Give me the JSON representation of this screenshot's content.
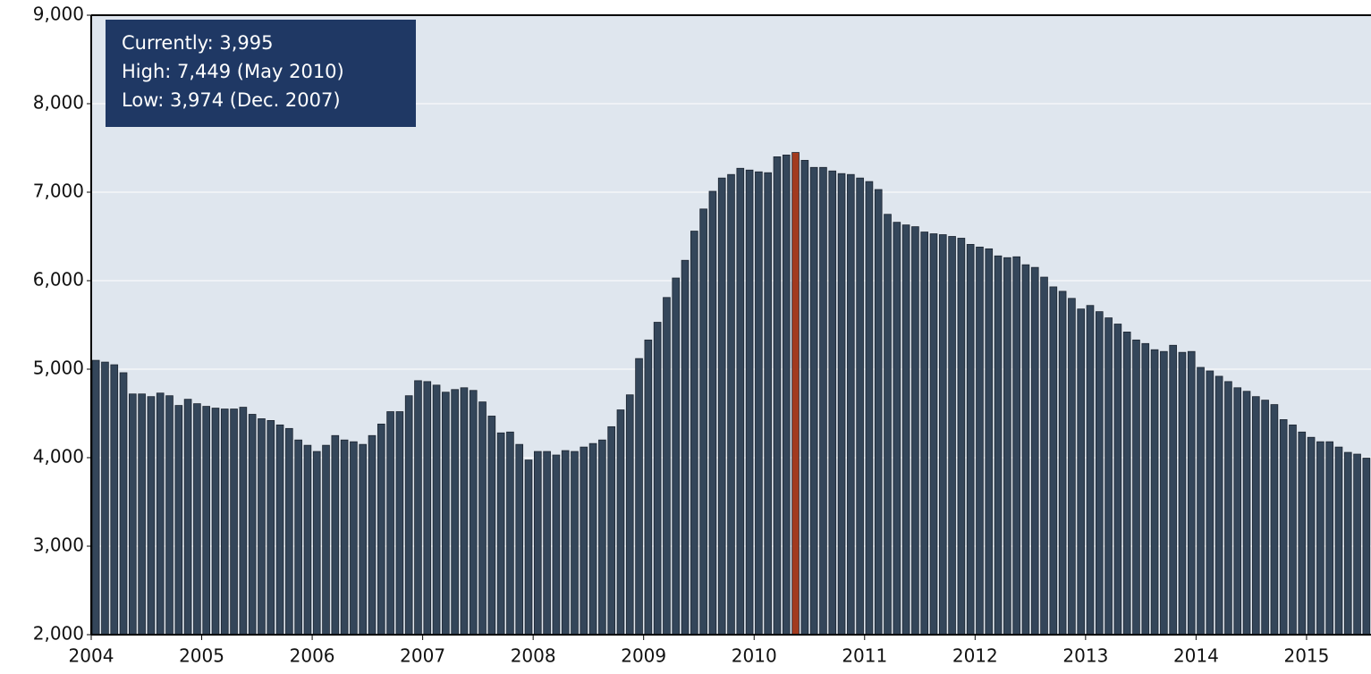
{
  "chart_data": {
    "type": "bar",
    "annotations": [
      "Currently: 3,995",
      "High: 7,449 (May 2010)",
      "Low: 3,974 (Dec. 2007)"
    ],
    "categories": [
      "2004",
      null,
      null,
      null,
      null,
      null,
      null,
      null,
      null,
      null,
      null,
      null,
      "2005",
      null,
      null,
      null,
      null,
      null,
      null,
      null,
      null,
      null,
      null,
      null,
      "2006",
      null,
      null,
      null,
      null,
      null,
      null,
      null,
      null,
      null,
      null,
      null,
      "2007",
      null,
      null,
      null,
      null,
      null,
      null,
      null,
      null,
      null,
      null,
      null,
      "2008",
      null,
      null,
      null,
      null,
      null,
      null,
      null,
      null,
      null,
      null,
      null,
      "2009",
      null,
      null,
      null,
      null,
      null,
      null,
      null,
      null,
      null,
      null,
      null,
      "2010",
      null,
      null,
      null,
      null,
      null,
      null,
      null,
      null,
      null,
      null,
      null,
      "2011",
      null,
      null,
      null,
      null,
      null,
      null,
      null,
      null,
      null,
      null,
      null,
      "2012",
      null,
      null,
      null,
      null,
      null,
      null,
      null,
      null,
      null,
      null,
      null,
      "2013",
      null,
      null,
      null,
      null,
      null,
      null,
      null,
      null,
      null,
      null,
      null,
      "2014",
      null,
      null,
      null,
      null,
      null,
      null,
      null,
      null,
      null,
      null,
      null,
      "2015",
      null,
      null,
      null,
      null,
      null,
      null
    ],
    "values": [
      5100,
      5080,
      5050,
      4960,
      4720,
      4720,
      4690,
      4730,
      4700,
      4590,
      4660,
      4610,
      4580,
      4560,
      4550,
      4550,
      4570,
      4490,
      4440,
      4420,
      4370,
      4330,
      4200,
      4140,
      4070,
      4140,
      4250,
      4200,
      4180,
      4150,
      4250,
      4380,
      4520,
      4520,
      4700,
      4870,
      4860,
      4820,
      4740,
      4770,
      4790,
      4760,
      4630,
      4470,
      4280,
      4290,
      4150,
      3974,
      4070,
      4070,
      4030,
      4080,
      4070,
      4120,
      4160,
      4200,
      4350,
      4540,
      4710,
      5120,
      5330,
      5530,
      5810,
      6030,
      6230,
      6560,
      6810,
      7010,
      7160,
      7200,
      7270,
      7250,
      7230,
      7220,
      7400,
      7420,
      7449,
      7360,
      7280,
      7280,
      7240,
      7210,
      7200,
      7160,
      7120,
      7030,
      6750,
      6660,
      6630,
      6610,
      6550,
      6530,
      6520,
      6500,
      6480,
      6410,
      6380,
      6360,
      6280,
      6260,
      6270,
      6180,
      6150,
      6040,
      5930,
      5880,
      5800,
      5680,
      5720,
      5650,
      5580,
      5510,
      5420,
      5330,
      5290,
      5220,
      5200,
      5270,
      5190,
      5200,
      5020,
      4980,
      4920,
      4860,
      4790,
      4750,
      4690,
      4650,
      4600,
      4430,
      4370,
      4290,
      4230,
      4180,
      4180,
      4120,
      4060,
      4040,
      3995
    ],
    "color": "#34465a",
    "highlight_index": 76,
    "highlight_color": "#a23a1e",
    "ylim": [
      2000,
      9000
    ],
    "yticks": [
      {
        "value": 2000,
        "label": "2,000"
      },
      {
        "value": 3000,
        "label": "3,000"
      },
      {
        "value": 4000,
        "label": "4,000"
      },
      {
        "value": 5000,
        "label": "5,000"
      },
      {
        "value": 6000,
        "label": "6,000"
      },
      {
        "value": 7000,
        "label": "7,000"
      },
      {
        "value": 8000,
        "label": "8,000"
      },
      {
        "value": 9000,
        "label": "9,000"
      }
    ],
    "grid": true
  }
}
